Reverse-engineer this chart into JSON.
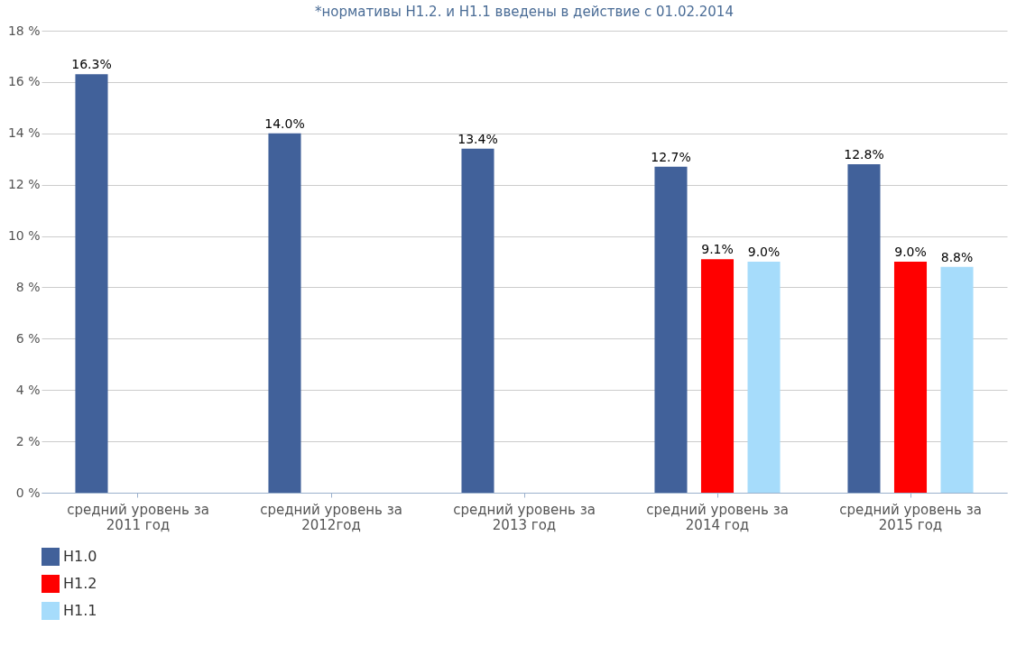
{
  "chart_data": {
    "type": "bar",
    "title": "*нормативы Н1.2. и Н1.1 введены в действие с 01.02.2014",
    "categories": [
      "средний уровень за 2011 год",
      "средний уровень за 2012год",
      "средний уровень за 2013 год",
      "средний уровень за 2014 год",
      "средний уровень за 2015 год"
    ],
    "series": [
      {
        "name": "Н1.0",
        "color": "#41619a",
        "values": [
          16.3,
          14.0,
          13.4,
          12.7,
          12.8
        ],
        "value_labels": [
          "16.3%",
          "14.0%",
          "13.4%",
          "12.7%",
          "12.8%"
        ]
      },
      {
        "name": "Н1.2",
        "color": "#ff0000",
        "values": [
          null,
          null,
          null,
          9.1,
          9.0
        ],
        "value_labels": [
          null,
          null,
          null,
          "9.1%",
          "9.0%"
        ]
      },
      {
        "name": "Н1.1",
        "color": "#a6dcfb",
        "values": [
          null,
          null,
          null,
          9.0,
          8.8
        ],
        "value_labels": [
          null,
          null,
          null,
          "9.0%",
          "8.8%"
        ]
      }
    ],
    "ylim": [
      0,
      18
    ],
    "yticks": [
      {
        "value": 0,
        "label": "0 %"
      },
      {
        "value": 2,
        "label": "2 %"
      },
      {
        "value": 4,
        "label": "4 %"
      },
      {
        "value": 6,
        "label": "6 %"
      },
      {
        "value": 8,
        "label": "8 %"
      },
      {
        "value": 10,
        "label": "10 %"
      },
      {
        "value": 12,
        "label": "12 %"
      },
      {
        "value": 14,
        "label": "14 %"
      },
      {
        "value": 16,
        "label": "16 %"
      },
      {
        "value": 18,
        "label": "18 %"
      }
    ],
    "grid": "y",
    "legend": "bottom"
  }
}
